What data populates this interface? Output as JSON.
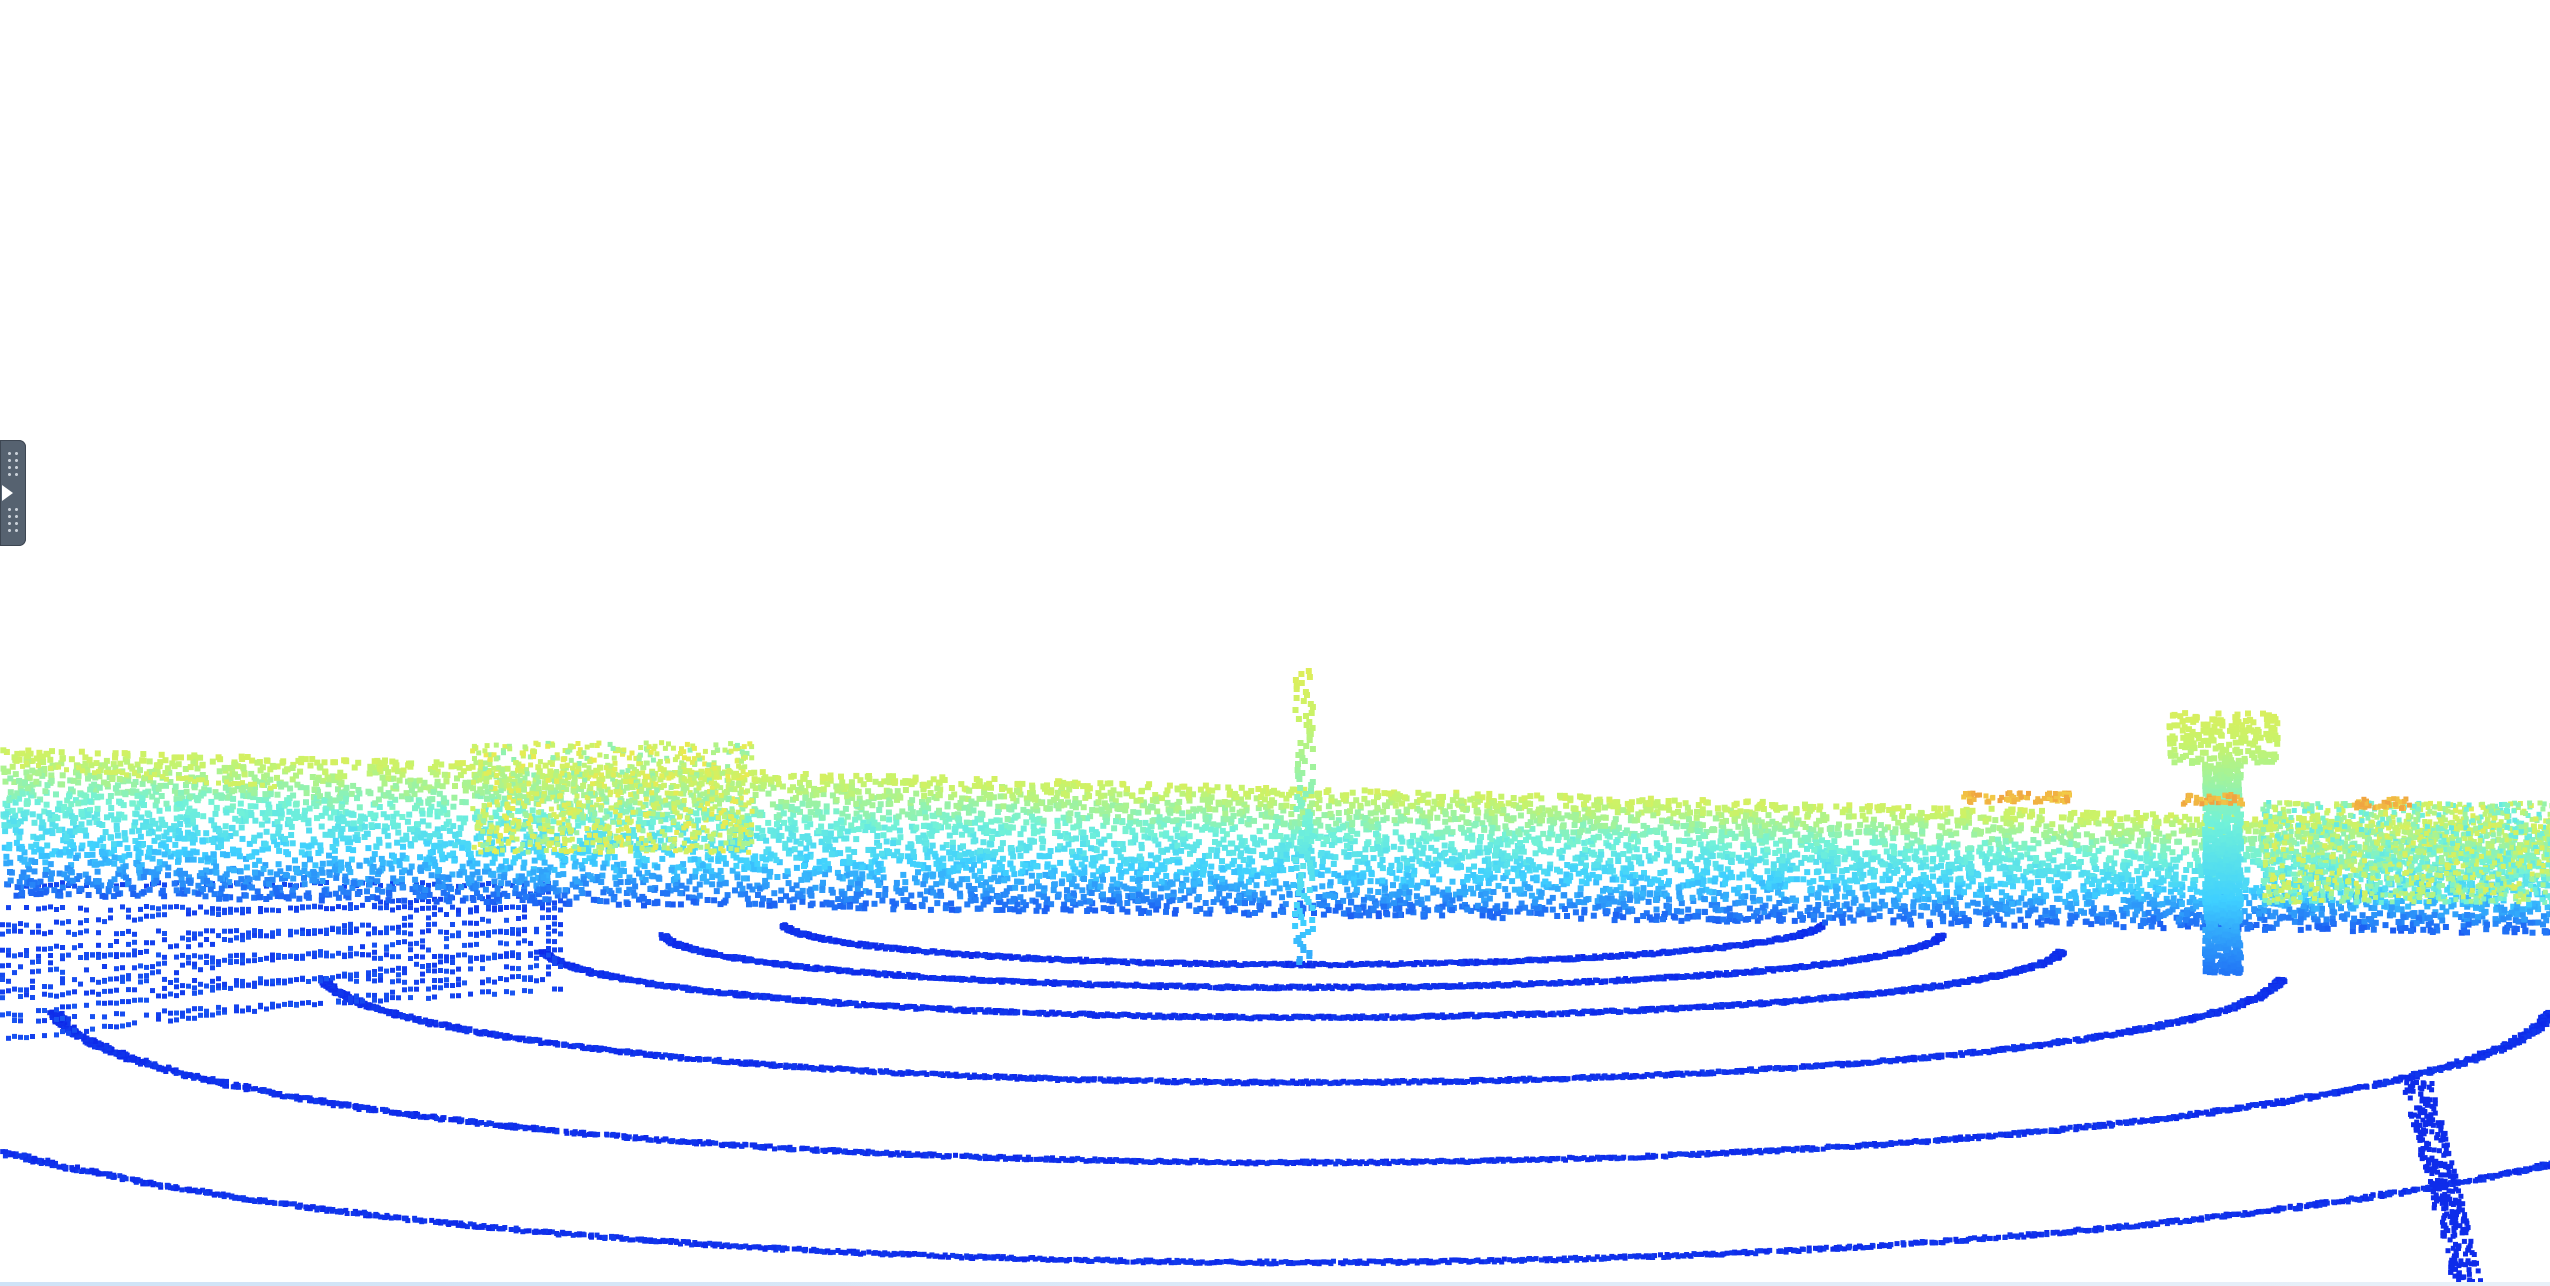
{
  "viewer": {
    "background_color": "#ffffff",
    "colormap": "jet",
    "colormap_stops": [
      "#0a1ee8",
      "#1f6df5",
      "#3fd0ff",
      "#72f2d8",
      "#c8f36a",
      "#f3e84a",
      "#f0a040"
    ]
  },
  "panel_toggle": {
    "icon": "expand-arrow-icon",
    "color": "#566270"
  }
}
